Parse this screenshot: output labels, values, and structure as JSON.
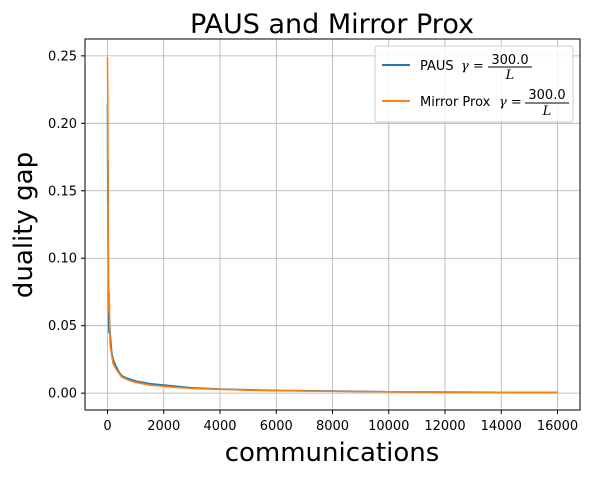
{
  "chart_data": {
    "type": "line",
    "title": "PAUS and Mirror Prox",
    "xlabel": "communications",
    "ylabel": "duality gap",
    "xlim": [
      -800,
      16800
    ],
    "ylim": [
      -0.0125,
      0.2625
    ],
    "xticks": [
      0,
      2000,
      4000,
      6000,
      8000,
      10000,
      12000,
      14000,
      16000
    ],
    "xtick_labels": [
      "0",
      "2000",
      "4000",
      "6000",
      "8000",
      "10000",
      "12000",
      "14000",
      "16000"
    ],
    "yticks": [
      0.0,
      0.05,
      0.1,
      0.15,
      0.2,
      0.25
    ],
    "ytick_labels": [
      "0.00",
      "0.05",
      "0.10",
      "0.15",
      "0.20",
      "0.25"
    ],
    "grid": true,
    "legend_position": "upper right",
    "series": [
      {
        "name": "PAUS",
        "gamma_prefix": "γ =",
        "gamma_numerator": "300.0",
        "gamma_denominator": "L",
        "color": "#1f77b4",
        "x": [
          0,
          10,
          20,
          30,
          40,
          50,
          60,
          80,
          100,
          150,
          200,
          300,
          400,
          500,
          700,
          1000,
          1500,
          2000,
          3000,
          4000,
          5000,
          6000,
          8000,
          10000,
          12000,
          14000,
          16000
        ],
        "y": [
          0.215,
          0.14,
          0.173,
          0.09,
          0.06,
          0.045,
          0.058,
          0.05,
          0.043,
          0.03,
          0.025,
          0.02,
          0.016,
          0.013,
          0.011,
          0.009,
          0.007,
          0.006,
          0.004,
          0.003,
          0.0025,
          0.002,
          0.0015,
          0.001,
          0.0008,
          0.0006,
          0.0005
        ]
      },
      {
        "name": "Mirror Prox",
        "gamma_prefix": "γ =",
        "gamma_numerator": "300.0",
        "gamma_denominator": "L",
        "color": "#ff7f0e",
        "x": [
          0,
          10,
          20,
          30,
          40,
          50,
          60,
          80,
          100,
          150,
          200,
          300,
          400,
          500,
          700,
          1000,
          1500,
          2000,
          3000,
          4000,
          5000,
          6000,
          8000,
          10000,
          12000,
          14000,
          16000
        ],
        "y": [
          0.249,
          0.22,
          0.12,
          0.085,
          0.07,
          0.06,
          0.075,
          0.045,
          0.035,
          0.028,
          0.022,
          0.018,
          0.015,
          0.012,
          0.01,
          0.008,
          0.006,
          0.005,
          0.0035,
          0.0028,
          0.0022,
          0.0018,
          0.0013,
          0.001,
          0.0008,
          0.0006,
          0.0005
        ]
      }
    ]
  }
}
